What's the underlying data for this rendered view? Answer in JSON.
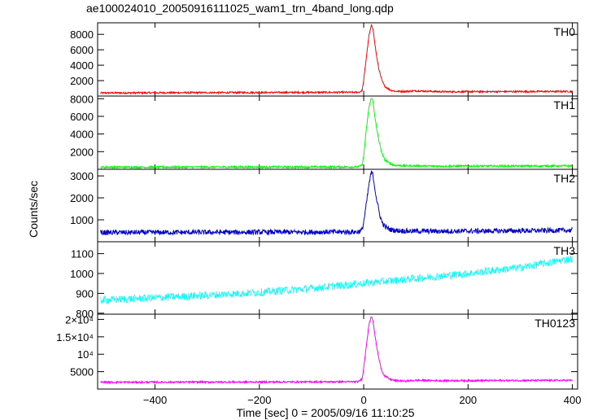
{
  "title": "ae100024010_20050916111025_wam1_trn_4band_long.qdp",
  "chart_data": {
    "type": "line",
    "xlabel": "Time [sec] 0 = 2005/09/16 11:10:25",
    "ylabel": "Counts/sec",
    "xlim": [
      -510,
      410
    ],
    "x_ticks": [
      -400,
      -200,
      0,
      200,
      400
    ],
    "x_tick_labels": [
      "−400",
      "−200",
      "0",
      "200",
      "400"
    ],
    "panels": [
      {
        "name": "TH0",
        "color": "#ff0000",
        "ylim": [
          0,
          9500
        ],
        "y_ticks": [
          2000,
          4000,
          6000,
          8000
        ],
        "y_tick_labels": [
          "2000",
          "4000",
          "6000",
          "8000"
        ],
        "series": {
          "x": [
            -505,
            -300,
            -100,
            -10,
            -3,
            0,
            5,
            10,
            15,
            18,
            21,
            25,
            30,
            35,
            40,
            50,
            60,
            80,
            100,
            150,
            250,
            400
          ],
          "y": [
            400,
            440,
            470,
            480,
            700,
            2000,
            5000,
            7800,
            9200,
            8700,
            7000,
            5000,
            3200,
            2000,
            1300,
            800,
            620,
            600,
            680,
            560,
            570,
            600
          ]
        }
      },
      {
        "name": "TH1",
        "color": "#00ff00",
        "ylim": [
          0,
          8300
        ],
        "y_ticks": [
          2000,
          4000,
          6000,
          8000
        ],
        "y_tick_labels": [
          "2000",
          "4000",
          "6000",
          "8000"
        ],
        "series": {
          "x": [
            -505,
            -300,
            -100,
            -10,
            -3,
            0,
            5,
            10,
            15,
            18,
            21,
            25,
            30,
            35,
            40,
            50,
            60,
            80,
            100,
            150,
            250,
            400
          ],
          "y": [
            240,
            250,
            260,
            270,
            500,
            1500,
            4500,
            7000,
            8200,
            7600,
            6200,
            4500,
            3000,
            1800,
            1100,
            650,
            450,
            400,
            380,
            350,
            360,
            380
          ]
        }
      },
      {
        "name": "TH2",
        "color": "#0000cc",
        "ylim": [
          0,
          3300
        ],
        "y_ticks": [
          1000,
          2000,
          3000
        ],
        "y_tick_labels": [
          "1000",
          "2000",
          "3000"
        ],
        "series": {
          "x": [
            -505,
            -300,
            -100,
            -10,
            -3,
            0,
            5,
            10,
            15,
            18,
            21,
            25,
            30,
            35,
            40,
            50,
            60,
            80,
            100,
            150,
            250,
            400
          ],
          "y": [
            420,
            430,
            440,
            450,
            550,
            900,
            1700,
            2600,
            3200,
            3000,
            2500,
            1900,
            1300,
            900,
            700,
            560,
            520,
            490,
            480,
            480,
            490,
            520
          ]
        }
      },
      {
        "name": "TH3",
        "color": "#00ffff",
        "ylim": [
          795,
          1160
        ],
        "y_ticks": [
          800,
          900,
          1000,
          1100
        ],
        "y_tick_labels": [
          "800",
          "900",
          "1000",
          "1100"
        ],
        "series": {
          "x": [
            -505,
            -400,
            -300,
            -200,
            -100,
            0,
            100,
            200,
            300,
            400
          ],
          "y": [
            865,
            878,
            890,
            905,
            925,
            950,
            975,
            1000,
            1030,
            1075
          ]
        }
      },
      {
        "name": "TH0123",
        "color": "#ff00ff",
        "ylim": [
          0,
          21500
        ],
        "y_ticks": [
          5000,
          10000,
          15000,
          20000
        ],
        "y_tick_labels": [
          "5000",
          "10⁴",
          "1.5×10⁴",
          "2×10⁴"
        ],
        "series": {
          "x": [
            -505,
            -300,
            -100,
            -10,
            -3,
            0,
            5,
            10,
            15,
            18,
            21,
            25,
            30,
            35,
            40,
            50,
            60,
            80,
            100,
            150,
            250,
            400
          ],
          "y": [
            1950,
            2000,
            2050,
            2100,
            3000,
            6000,
            12500,
            18500,
            21000,
            19500,
            16000,
            12000,
            8000,
            5200,
            3800,
            2800,
            2400,
            2300,
            2500,
            2400,
            2450,
            2500
          ]
        }
      }
    ]
  }
}
